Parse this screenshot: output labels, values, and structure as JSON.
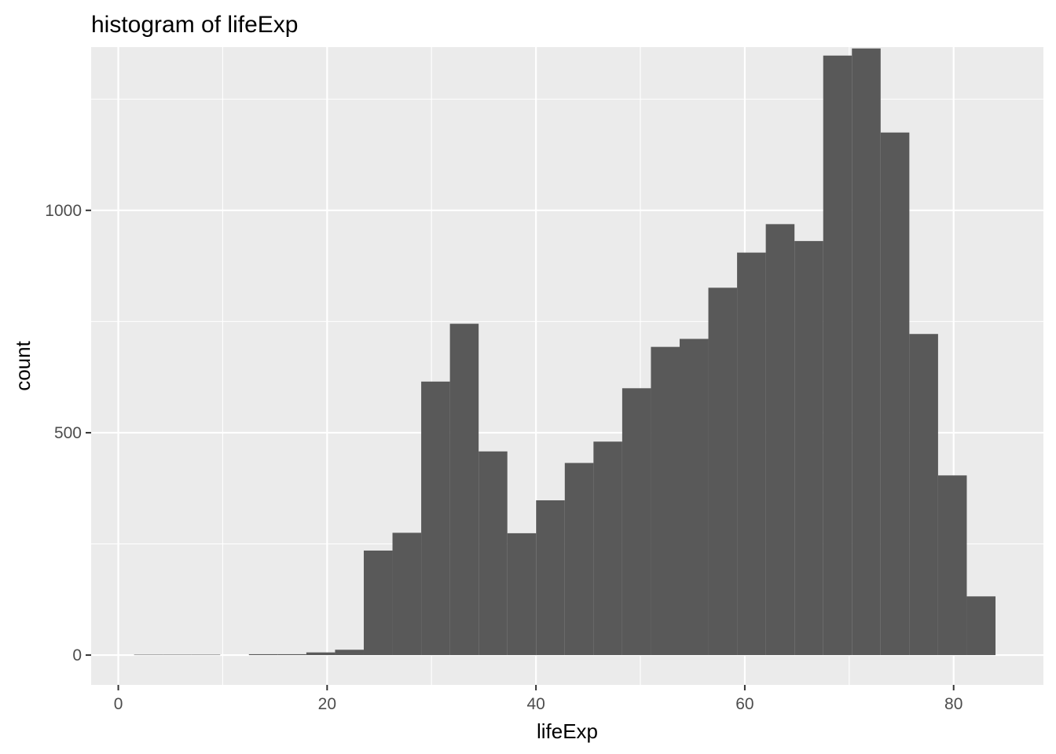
{
  "chart_data": {
    "type": "bar",
    "title": "histogram of lifeExp",
    "xlabel": "lifeExp",
    "ylabel": "count",
    "xlim": [
      -2.6,
      88.6
    ],
    "ylim": [
      -67,
      1367
    ],
    "x_ticks": [
      0,
      20,
      40,
      60,
      80
    ],
    "x_tick_labels": [
      "0",
      "20",
      "40",
      "60",
      "80"
    ],
    "y_ticks": [
      0,
      500,
      1000
    ],
    "y_tick_labels": [
      "0",
      "500",
      "1000"
    ],
    "grid": true,
    "legend": "none",
    "bar_color": "#595959",
    "panel_color": "#ebebeb",
    "bin_width": 2.75,
    "bins": [
      {
        "x0": 1.51,
        "x1": 4.26,
        "count": 1
      },
      {
        "x0": 4.26,
        "x1": 7.01,
        "count": 1
      },
      {
        "x0": 7.01,
        "x1": 9.76,
        "count": 1
      },
      {
        "x0": 9.76,
        "x1": 12.51,
        "count": 0
      },
      {
        "x0": 12.51,
        "x1": 15.26,
        "count": 2
      },
      {
        "x0": 15.26,
        "x1": 18.01,
        "count": 2
      },
      {
        "x0": 18.01,
        "x1": 20.76,
        "count": 6
      },
      {
        "x0": 20.76,
        "x1": 23.51,
        "count": 12
      },
      {
        "x0": 23.51,
        "x1": 26.26,
        "count": 235
      },
      {
        "x0": 26.26,
        "x1": 29.01,
        "count": 275
      },
      {
        "x0": 29.01,
        "x1": 31.76,
        "count": 615
      },
      {
        "x0": 31.76,
        "x1": 34.51,
        "count": 745
      },
      {
        "x0": 34.51,
        "x1": 37.26,
        "count": 458
      },
      {
        "x0": 37.26,
        "x1": 40.01,
        "count": 274
      },
      {
        "x0": 40.01,
        "x1": 42.76,
        "count": 348
      },
      {
        "x0": 42.76,
        "x1": 45.51,
        "count": 432
      },
      {
        "x0": 45.51,
        "x1": 48.26,
        "count": 480
      },
      {
        "x0": 48.26,
        "x1": 51.01,
        "count": 600
      },
      {
        "x0": 51.01,
        "x1": 53.76,
        "count": 693
      },
      {
        "x0": 53.76,
        "x1": 56.51,
        "count": 711
      },
      {
        "x0": 56.51,
        "x1": 59.26,
        "count": 826
      },
      {
        "x0": 59.26,
        "x1": 62.01,
        "count": 905
      },
      {
        "x0": 62.01,
        "x1": 64.76,
        "count": 969
      },
      {
        "x0": 64.76,
        "x1": 67.51,
        "count": 931
      },
      {
        "x0": 67.51,
        "x1": 70.26,
        "count": 1348
      },
      {
        "x0": 70.26,
        "x1": 73.01,
        "count": 1364
      },
      {
        "x0": 73.01,
        "x1": 75.76,
        "count": 1175
      },
      {
        "x0": 75.76,
        "x1": 78.51,
        "count": 722
      },
      {
        "x0": 78.51,
        "x1": 81.26,
        "count": 404
      },
      {
        "x0": 81.26,
        "x1": 84.01,
        "count": 132
      }
    ]
  }
}
